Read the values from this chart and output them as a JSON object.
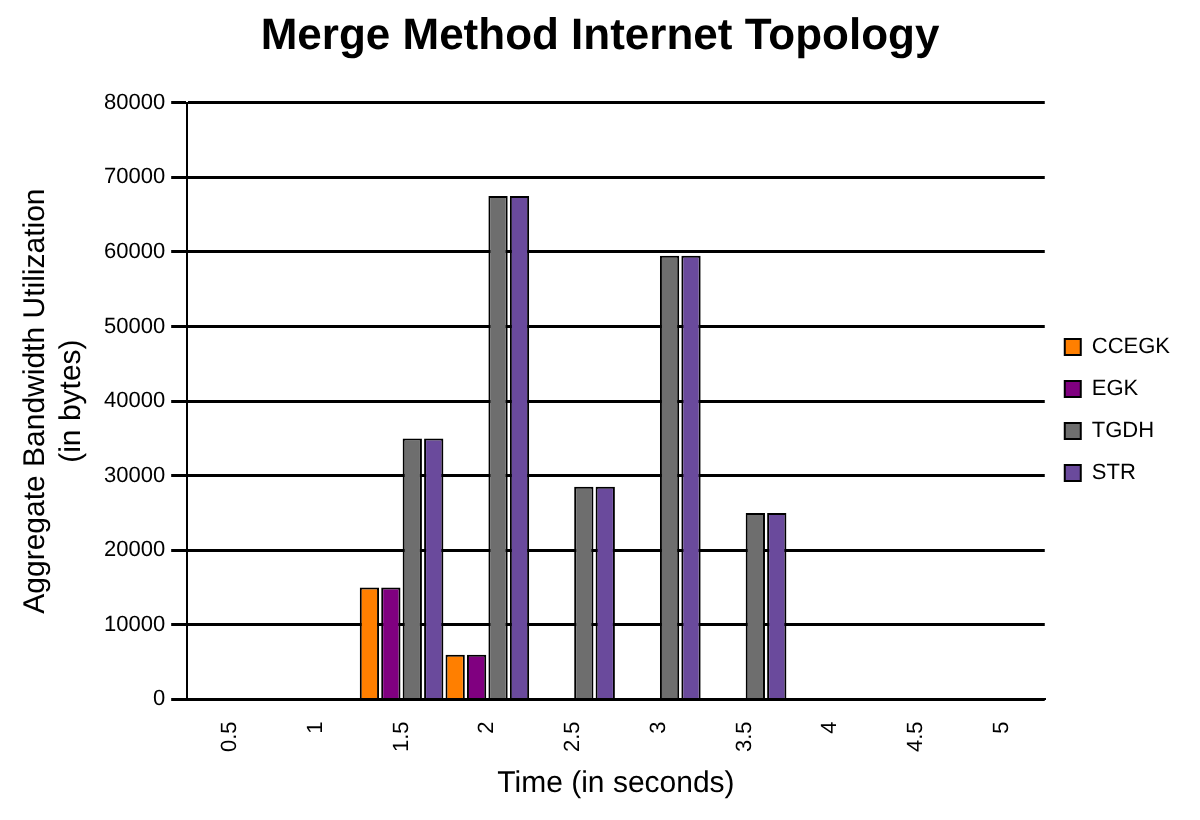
{
  "chart_data": {
    "type": "bar",
    "title": "Merge Method Internet Topology",
    "xlabel": "Time (in seconds)",
    "ylabel": "Aggregate Bandwidth Utilization (in bytes)",
    "categories": [
      "0.5",
      "1",
      "1.5",
      "2",
      "2.5",
      "3",
      "3.5",
      "4",
      "4.5",
      "5"
    ],
    "series": [
      {
        "name": "CCEGK",
        "color": "#ff7f00",
        "values": [
          0,
          0,
          15000,
          6000,
          0,
          0,
          0,
          0,
          0,
          0
        ]
      },
      {
        "name": "EGK",
        "color": "#800080",
        "values": [
          0,
          0,
          15000,
          6000,
          0,
          0,
          0,
          0,
          0,
          0
        ]
      },
      {
        "name": "TGDH",
        "color": "#6e6e6e",
        "values": [
          0,
          0,
          35000,
          67500,
          28500,
          59500,
          25000,
          0,
          0,
          0
        ]
      },
      {
        "name": "STR",
        "color": "#6a4a9c",
        "values": [
          0,
          0,
          35000,
          67500,
          28500,
          59500,
          25000,
          0,
          0,
          0
        ]
      }
    ],
    "ylim": [
      0,
      80000
    ],
    "yticks": [
      0,
      10000,
      20000,
      30000,
      40000,
      50000,
      60000,
      70000,
      80000
    ],
    "grid": "y",
    "legend": "right"
  }
}
